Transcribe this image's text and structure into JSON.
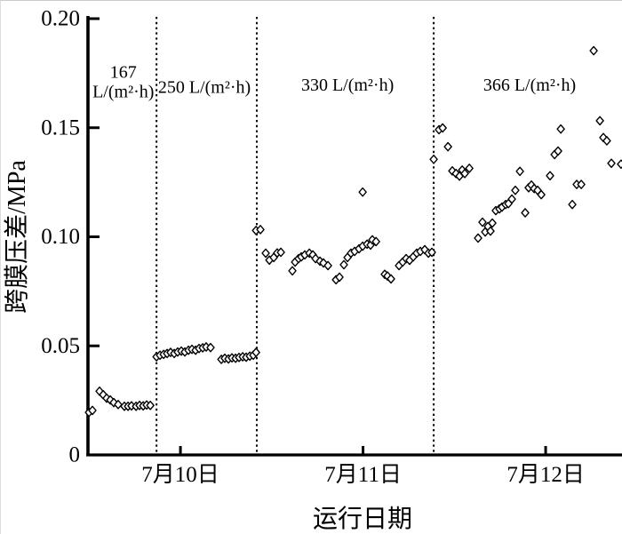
{
  "chart_data": {
    "type": "scatter",
    "title": "",
    "xlabel": "运行日期",
    "ylabel": "跨膜压差/MPa",
    "marker": "open-diamond",
    "marker_color": "#000000",
    "grid": false,
    "x_unit": "days relative to 7月10日",
    "xlim": [
      -0.521,
      2.423
    ],
    "ylim": [
      0,
      0.2
    ],
    "xticks": [
      0,
      1,
      2
    ],
    "xtick_labels": [
      "7月10日",
      "7月11日",
      "7月12日"
    ],
    "yticks": [
      0,
      0.05,
      0.1,
      0.15,
      0.2
    ],
    "ytick_labels": [
      "0",
      "0.05",
      "0.10",
      "0.15",
      "0.20"
    ],
    "dividers_x": [
      -0.131,
      0.418,
      1.387
    ],
    "divider_style": "dotted",
    "annotations": [
      {
        "lines": [
          "167",
          "L/(m²·h)"
        ],
        "x": -0.313,
        "y": [
          0.173,
          0.164
        ]
      },
      {
        "lines": [
          "250 L/(m²·h)"
        ],
        "x": 0.131,
        "y": [
          0.166
        ]
      },
      {
        "lines": [
          "330 L/(m²·h)"
        ],
        "x": 0.915,
        "y": [
          0.167
        ]
      },
      {
        "lines": [
          "366 L/(m²·h)"
        ],
        "x": 1.912,
        "y": [
          0.167
        ]
      }
    ],
    "series": [
      {
        "name": "167 L/(m²·h)",
        "points": [
          [
            -0.501,
            0.0195
          ],
          [
            -0.482,
            0.0204
          ],
          [
            -0.443,
            0.0292
          ],
          [
            -0.423,
            0.0276
          ],
          [
            -0.404,
            0.026
          ],
          [
            -0.384,
            0.0252
          ],
          [
            -0.365,
            0.024
          ],
          [
            -0.341,
            0.0231
          ],
          [
            -0.307,
            0.0223
          ],
          [
            -0.287,
            0.0223
          ],
          [
            -0.268,
            0.0225
          ],
          [
            -0.243,
            0.0223
          ],
          [
            -0.224,
            0.0227
          ],
          [
            -0.204,
            0.0225
          ],
          [
            -0.185,
            0.0229
          ],
          [
            -0.165,
            0.0227
          ]
        ]
      },
      {
        "name": "250 L/(m²·h)",
        "points": [
          [
            -0.131,
            0.045
          ],
          [
            -0.112,
            0.0457
          ],
          [
            -0.092,
            0.0461
          ],
          [
            -0.073,
            0.0465
          ],
          [
            -0.054,
            0.047
          ],
          [
            -0.034,
            0.0465
          ],
          [
            -0.015,
            0.0472
          ],
          [
            0.005,
            0.0476
          ],
          [
            0.024,
            0.0472
          ],
          [
            0.044,
            0.048
          ],
          [
            0.063,
            0.0484
          ],
          [
            0.083,
            0.048
          ],
          [
            0.102,
            0.0488
          ],
          [
            0.122,
            0.0491
          ],
          [
            0.141,
            0.0495
          ],
          [
            0.165,
            0.0492
          ],
          [
            0.224,
            0.0438
          ],
          [
            0.243,
            0.0443
          ],
          [
            0.263,
            0.044
          ],
          [
            0.282,
            0.0445
          ],
          [
            0.302,
            0.0443
          ],
          [
            0.321,
            0.0447
          ],
          [
            0.341,
            0.045
          ],
          [
            0.36,
            0.0448
          ],
          [
            0.38,
            0.0453
          ],
          [
            0.399,
            0.0457
          ],
          [
            0.414,
            0.047
          ]
        ]
      },
      {
        "name": "330 L/(m²·h)",
        "points": [
          [
            0.414,
            0.1029
          ],
          [
            0.438,
            0.1033
          ],
          [
            0.467,
            0.0925
          ],
          [
            0.487,
            0.0893
          ],
          [
            0.511,
            0.0905
          ],
          [
            0.53,
            0.0926
          ],
          [
            0.55,
            0.0929
          ],
          [
            0.613,
            0.0844
          ],
          [
            0.628,
            0.0884
          ],
          [
            0.647,
            0.09
          ],
          [
            0.662,
            0.0908
          ],
          [
            0.681,
            0.0917
          ],
          [
            0.706,
            0.0925
          ],
          [
            0.725,
            0.0917
          ],
          [
            0.74,
            0.09
          ],
          [
            0.764,
            0.0888
          ],
          [
            0.783,
            0.088
          ],
          [
            0.808,
            0.0868
          ],
          [
            0.852,
            0.0803
          ],
          [
            0.871,
            0.0815
          ],
          [
            0.895,
            0.0872
          ],
          [
            0.915,
            0.0905
          ],
          [
            0.934,
            0.0925
          ],
          [
            0.954,
            0.0933
          ],
          [
            0.978,
            0.0945
          ],
          [
            0.998,
            0.0957
          ],
          [
            1.022,
            0.0966
          ],
          [
            1.041,
            0.0962
          ],
          [
            1.051,
            0.0986
          ],
          [
            1.071,
            0.0978
          ],
          [
            0.998,
            0.1205
          ],
          [
            1.119,
            0.0828
          ],
          [
            1.134,
            0.082
          ],
          [
            1.153,
            0.0807
          ],
          [
            1.197,
            0.0868
          ],
          [
            1.217,
            0.0884
          ],
          [
            1.236,
            0.09
          ],
          [
            1.255,
            0.0892
          ],
          [
            1.275,
            0.0908
          ],
          [
            1.294,
            0.0925
          ],
          [
            1.314,
            0.0933
          ],
          [
            1.338,
            0.0941
          ],
          [
            1.358,
            0.0925
          ],
          [
            1.377,
            0.0929
          ]
        ]
      },
      {
        "name": "366 L/(m²·h)",
        "points": [
          [
            1.387,
            0.1355
          ],
          [
            1.416,
            0.1491
          ],
          [
            1.436,
            0.1499
          ],
          [
            1.465,
            0.1413
          ],
          [
            1.489,
            0.1302
          ],
          [
            1.509,
            0.129
          ],
          [
            1.528,
            0.1278
          ],
          [
            1.543,
            0.1306
          ],
          [
            1.557,
            0.129
          ],
          [
            1.582,
            0.1314
          ],
          [
            1.63,
            0.0994
          ],
          [
            1.654,
            0.1067
          ],
          [
            1.669,
            0.1022
          ],
          [
            1.684,
            0.1047
          ],
          [
            1.698,
            0.1026
          ],
          [
            1.708,
            0.1063
          ],
          [
            1.727,
            0.112
          ],
          [
            1.747,
            0.1128
          ],
          [
            1.761,
            0.1136
          ],
          [
            1.781,
            0.1148
          ],
          [
            1.796,
            0.1152
          ],
          [
            1.815,
            0.1173
          ],
          [
            1.834,
            0.1213
          ],
          [
            1.859,
            0.13
          ],
          [
            1.888,
            0.111
          ],
          [
            1.907,
            0.1225
          ],
          [
            1.922,
            0.1237
          ],
          [
            1.937,
            0.1221
          ],
          [
            1.956,
            0.1213
          ],
          [
            1.976,
            0.1193
          ],
          [
            2.024,
            0.128
          ],
          [
            2.049,
            0.1377
          ],
          [
            2.068,
            0.1393
          ],
          [
            2.083,
            0.1494
          ],
          [
            2.146,
            0.1148
          ],
          [
            2.17,
            0.124
          ],
          [
            2.195,
            0.124
          ],
          [
            2.263,
            0.1853
          ],
          [
            2.297,
            0.1532
          ],
          [
            2.316,
            0.1455
          ],
          [
            2.335,
            0.144
          ],
          [
            2.36,
            0.1337
          ],
          [
            2.413,
            0.1333
          ]
        ]
      }
    ]
  }
}
